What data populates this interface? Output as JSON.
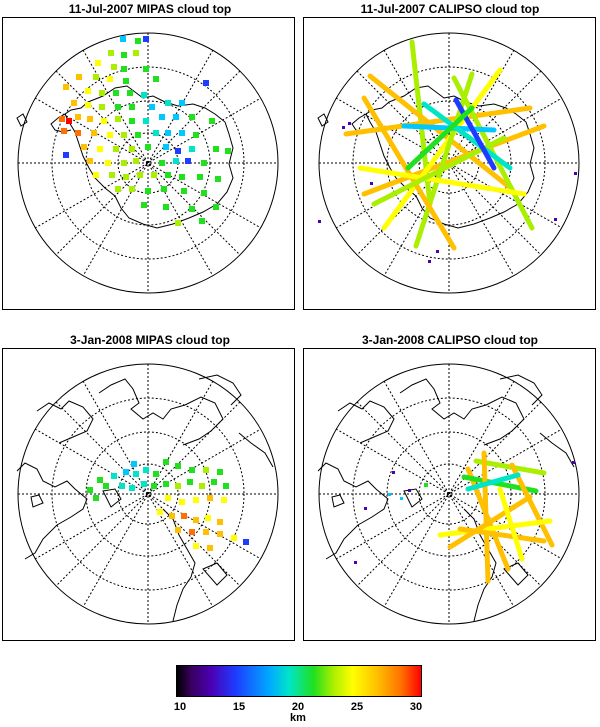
{
  "panels": [
    {
      "title": "11-Jul-2007 MIPAS cloud top",
      "type": "mipas"
    },
    {
      "title": "11-Jul-2007 CALIPSO cloud top",
      "type": "calipso"
    },
    {
      "title": "3-Jan-2008 MIPAS cloud top",
      "type": "mipas"
    },
    {
      "title": "3-Jan-2008 CALIPSO cloud top",
      "type": "calipso"
    }
  ],
  "colorbar": {
    "ticks": [
      "10",
      "15",
      "20",
      "25",
      "30"
    ],
    "unit": "km",
    "min": 10,
    "max": 30
  },
  "colors": {
    "c13": "#1e3cff",
    "c16": "#00c8ff",
    "c18": "#00e5c8",
    "c20": "#20e020",
    "c22": "#aaee00",
    "c24": "#ffff00",
    "c26": "#ffc000",
    "c28": "#ff7000",
    "c30": "#ff0000",
    "c11": "#4b00b4"
  }
}
